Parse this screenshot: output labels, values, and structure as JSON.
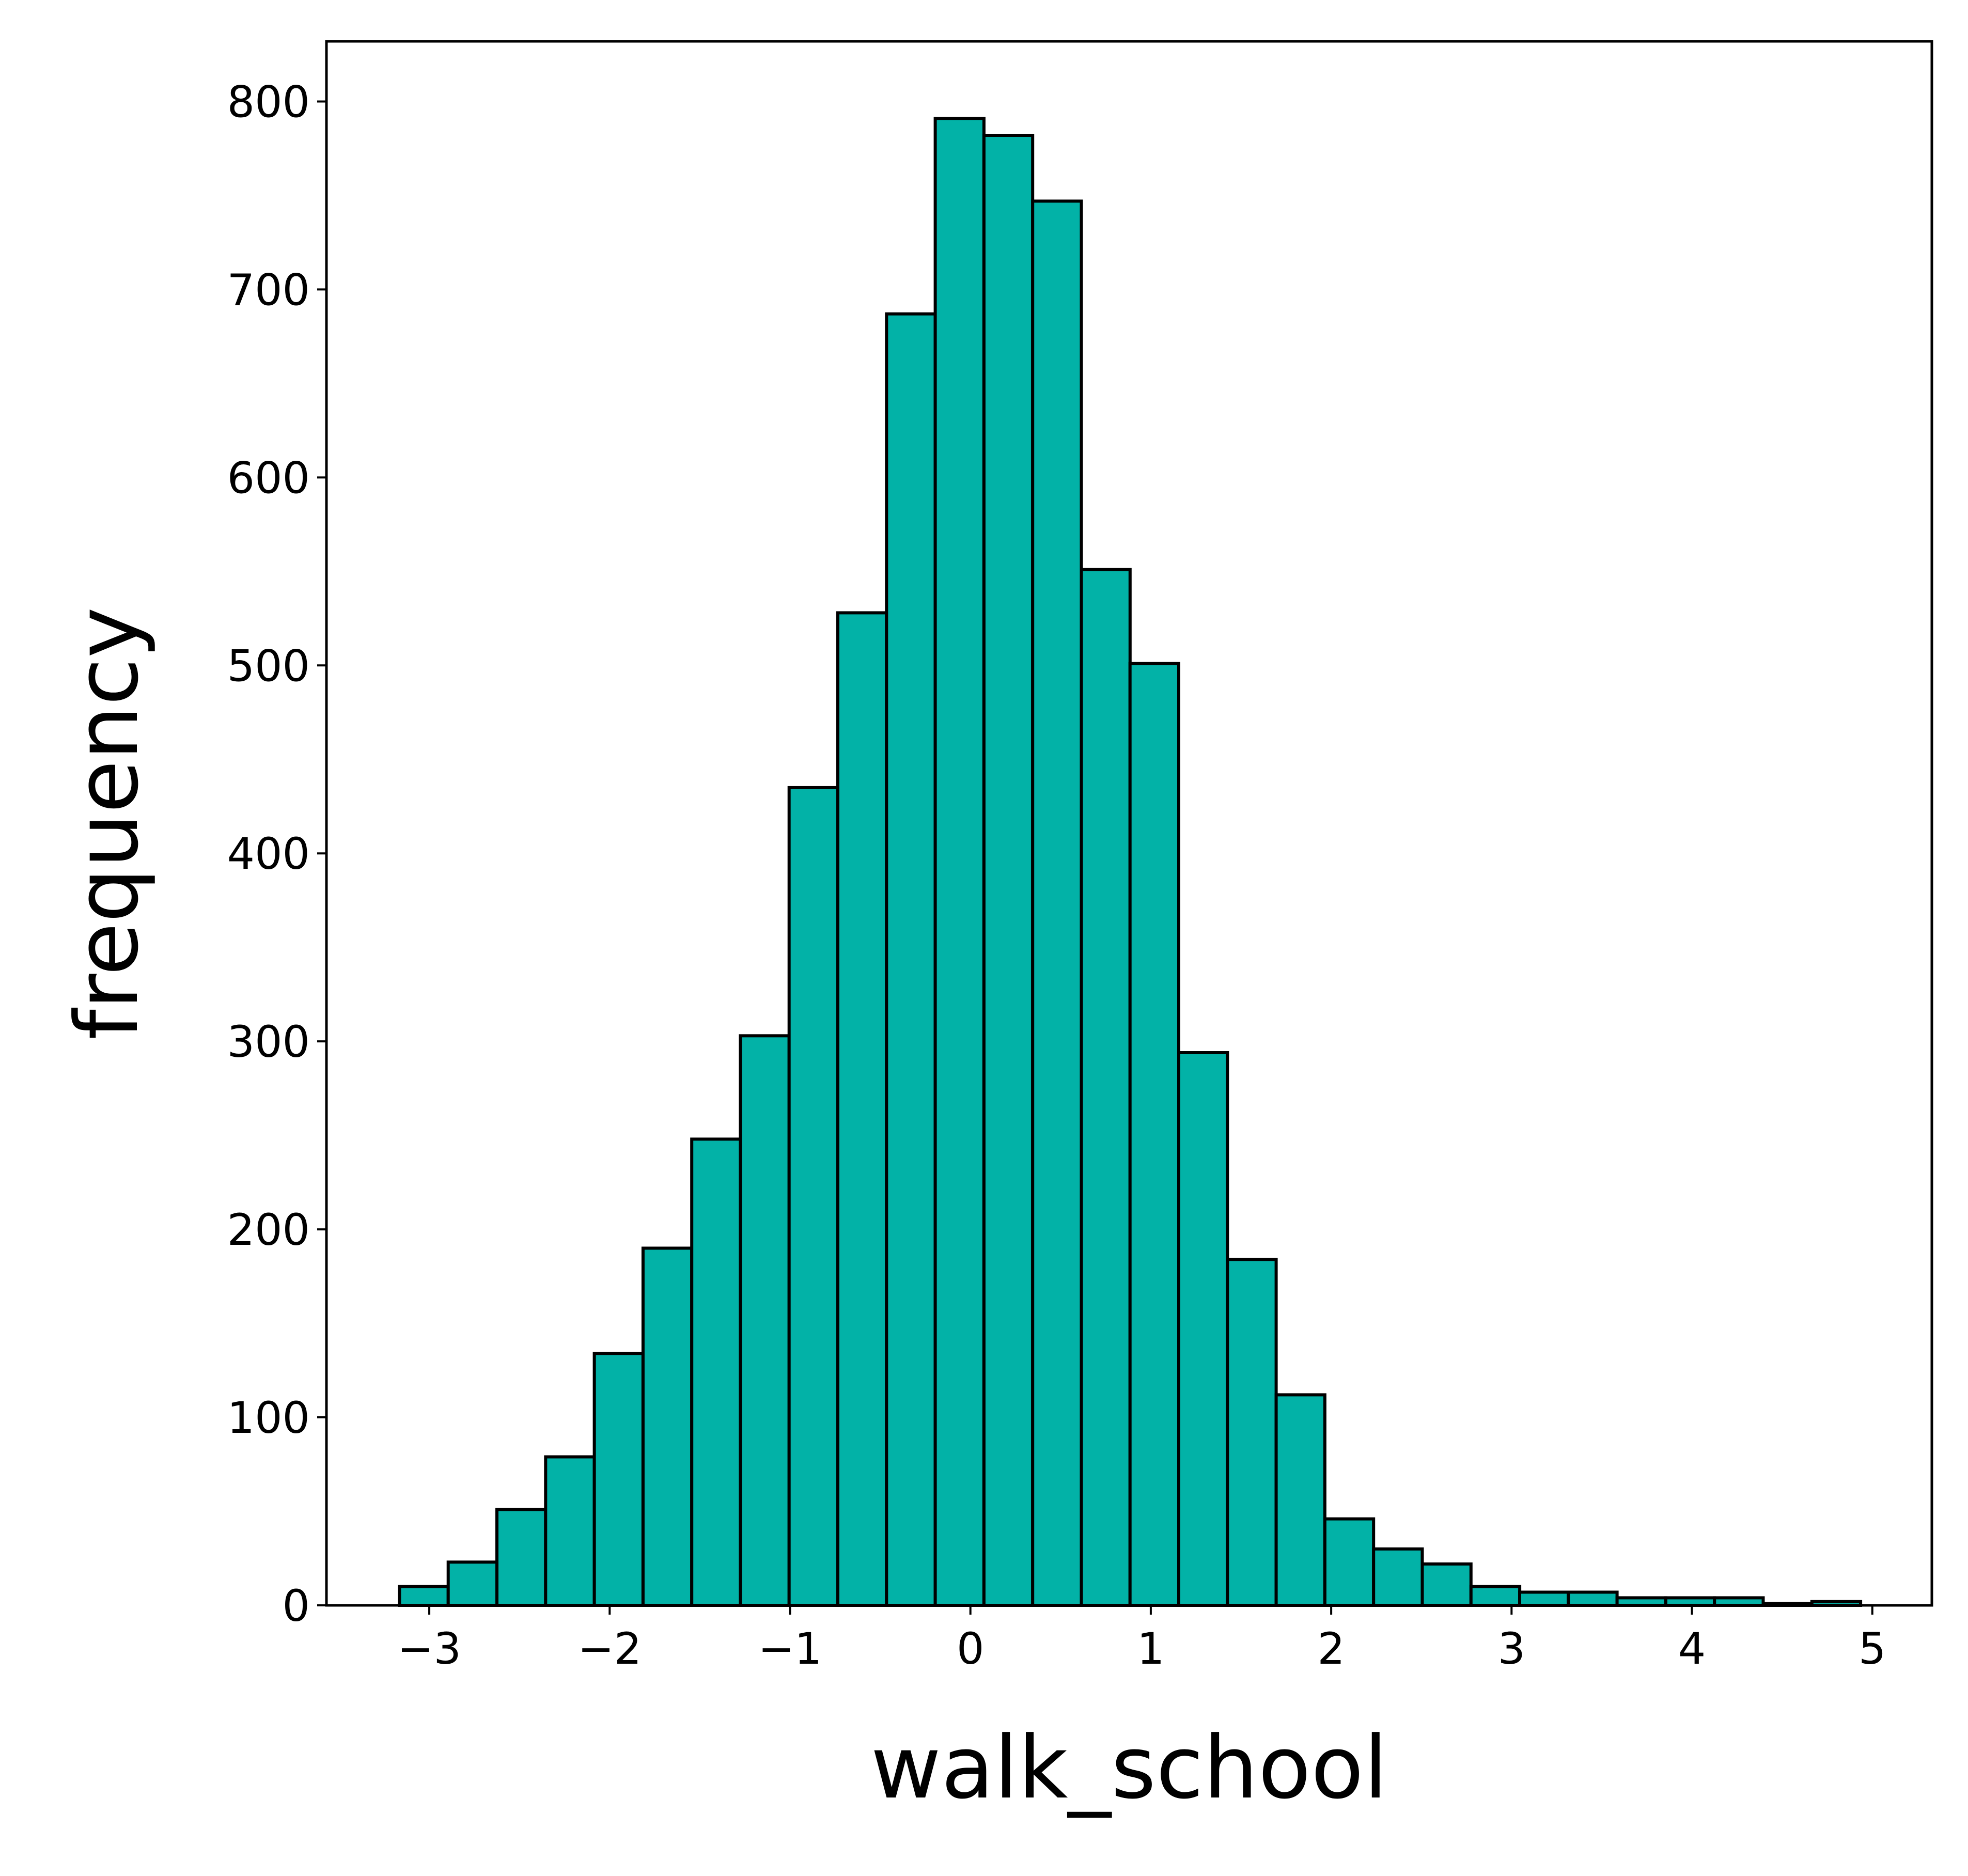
{
  "chart_data": {
    "type": "bar",
    "subtype": "histogram",
    "title": "",
    "xlabel": "walk_school",
    "ylabel": "frequency",
    "xlim": [
      -3.57,
      5.33
    ],
    "ylim": [
      0,
      832
    ],
    "x_ticks": [
      {
        "value": -3,
        "label": "−3"
      },
      {
        "value": -2,
        "label": "−2"
      },
      {
        "value": -1,
        "label": "−1"
      },
      {
        "value": 0,
        "label": "0"
      },
      {
        "value": 1,
        "label": "1"
      },
      {
        "value": 2,
        "label": "2"
      },
      {
        "value": 3,
        "label": "3"
      },
      {
        "value": 4,
        "label": "4"
      },
      {
        "value": 5,
        "label": "5"
      }
    ],
    "y_ticks": [
      {
        "value": 0,
        "label": "0"
      },
      {
        "value": 100,
        "label": "100"
      },
      {
        "value": 200,
        "label": "200"
      },
      {
        "value": 300,
        "label": "300"
      },
      {
        "value": 400,
        "label": "400"
      },
      {
        "value": 500,
        "label": "500"
      },
      {
        "value": 600,
        "label": "600"
      },
      {
        "value": 700,
        "label": "700"
      },
      {
        "value": 800,
        "label": "800"
      }
    ],
    "bin_start": -3.165,
    "bin_width": 0.27,
    "values": [
      10,
      23,
      51,
      79,
      134,
      190,
      248,
      303,
      435,
      528,
      687,
      791,
      782,
      747,
      551,
      501,
      294,
      184,
      112,
      46,
      30,
      22,
      10,
      7,
      7,
      4,
      4,
      4,
      1,
      2
    ],
    "grid": false,
    "legend": "none",
    "bar_color": "#02b2a7",
    "edge_color": "#000000"
  }
}
